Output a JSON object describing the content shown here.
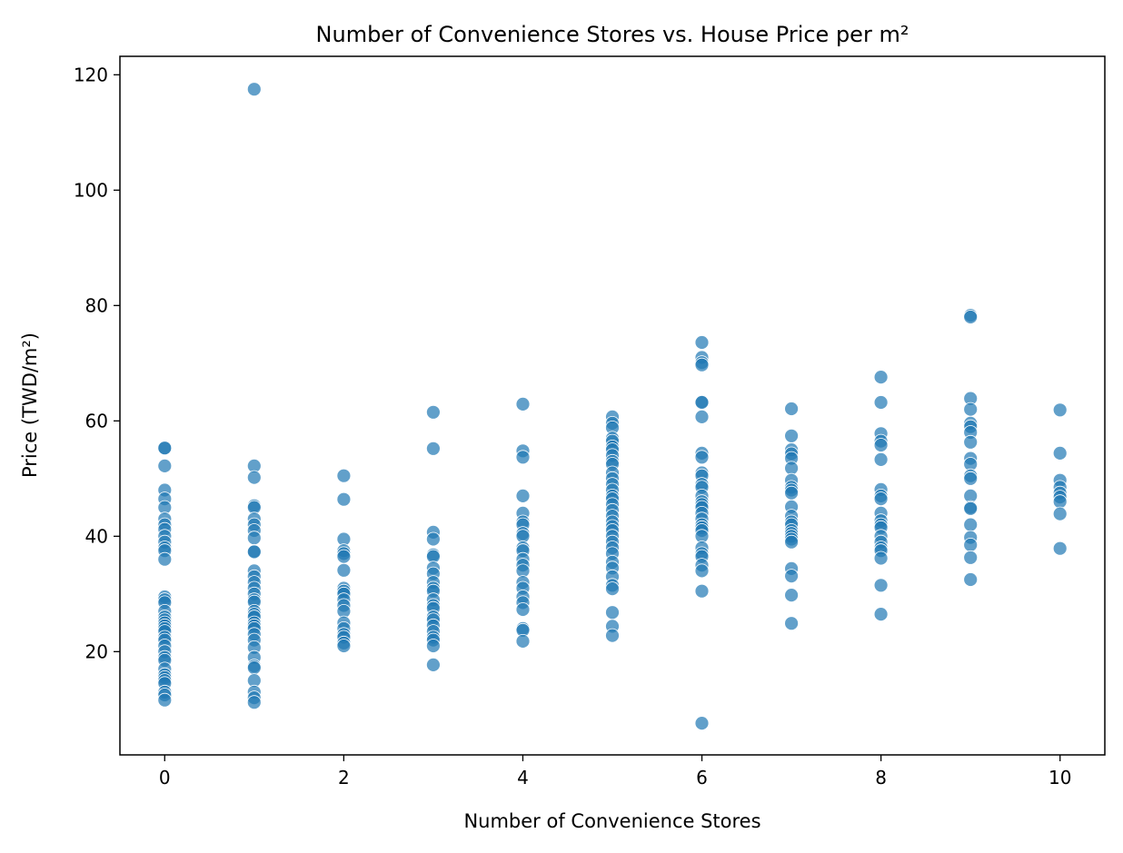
{
  "chart_data": {
    "type": "scatter",
    "title": "Number of Convenience Stores vs. House Price per m²",
    "xlabel": "Number of Convenience Stores",
    "ylabel": "Price (TWD/m²)",
    "xlim": [
      -0.5,
      10.5
    ],
    "ylim": [
      2.1,
      123.2
    ],
    "xticks": [
      0,
      2,
      4,
      6,
      8,
      10
    ],
    "yticks": [
      20,
      40,
      60,
      80,
      100,
      120
    ],
    "xtick_labels": [
      "0",
      "2",
      "4",
      "6",
      "8",
      "10"
    ],
    "ytick_labels": [
      "20",
      "40",
      "60",
      "80",
      "100",
      "120"
    ],
    "grid": false,
    "legend": false,
    "marker_color": "#1f77b4",
    "marker_alpha": 0.7,
    "points": [
      {
        "x": 0,
        "y": [
          55.3,
          55.3,
          52.2,
          48.0,
          46.5,
          45.0,
          43.0,
          42.0,
          41.2,
          40.0,
          39.0,
          38.0,
          37.5,
          36.0,
          29.5,
          29.0,
          28.5,
          27.0,
          26.0,
          25.5,
          25.0,
          24.5,
          24.0,
          23.5,
          22.5,
          22.0,
          21.0,
          20.0,
          19.0,
          18.5,
          17.0,
          16.0,
          15.5,
          15.0,
          14.5,
          13.0,
          12.5,
          11.6
        ]
      },
      {
        "x": 1,
        "y": [
          117.5,
          52.2,
          50.2,
          45.3,
          45.0,
          43.0,
          42.0,
          41.0,
          39.7,
          37.4,
          37.3,
          34.0,
          33.0,
          32.0,
          31.0,
          30.0,
          29.0,
          28.6,
          27.0,
          26.5,
          26.0,
          25.0,
          24.5,
          24.0,
          23.0,
          22.0,
          20.7,
          19.0,
          17.5,
          17.2,
          15.0,
          13.0,
          12.0,
          11.2
        ]
      },
      {
        "x": 2,
        "y": [
          50.5,
          46.4,
          39.5,
          37.5,
          37.0,
          36.5,
          34.1,
          31.0,
          30.5,
          30.0,
          29.0,
          28.0,
          27.0,
          25.0,
          24.0,
          23.0,
          22.5,
          21.5,
          21.0
        ]
      },
      {
        "x": 3,
        "y": [
          61.5,
          55.2,
          40.7,
          39.5,
          36.8,
          36.5,
          34.5,
          33.5,
          32.0,
          31.0,
          30.5,
          29.0,
          28.0,
          27.5,
          26.0,
          25.5,
          24.5,
          23.5,
          22.5,
          22.0,
          21.0,
          17.7
        ]
      },
      {
        "x": 4,
        "y": [
          62.9,
          54.8,
          53.7,
          47.0,
          44.0,
          42.5,
          42.0,
          40.5,
          40.0,
          38.0,
          37.5,
          36.0,
          35.0,
          34.0,
          32.0,
          31.0,
          29.5,
          28.5,
          27.3,
          24.0,
          23.7,
          21.8
        ]
      },
      {
        "x": 5,
        "y": [
          60.7,
          59.6,
          58.8,
          57.0,
          56.5,
          55.5,
          55.0,
          54.0,
          53.0,
          52.5,
          51.0,
          50.0,
          49.0,
          48.0,
          47.0,
          46.5,
          45.5,
          44.5,
          43.5,
          42.5,
          41.7,
          41.0,
          40.0,
          39.0,
          38.0,
          37.0,
          35.5,
          34.5,
          33.0,
          31.5,
          30.9,
          26.8,
          24.4,
          22.8
        ]
      },
      {
        "x": 6,
        "y": [
          73.6,
          71.0,
          70.1,
          69.7,
          63.3,
          63.2,
          60.7,
          54.4,
          53.7,
          51.0,
          50.5,
          49.0,
          48.5,
          47.0,
          46.0,
          45.5,
          45.0,
          44.0,
          43.0,
          42.0,
          41.5,
          41.0,
          40.0,
          38.0,
          37.0,
          36.5,
          35.0,
          34.0,
          30.5,
          7.6
        ]
      },
      {
        "x": 7,
        "y": [
          62.1,
          57.4,
          55.0,
          54.3,
          53.5,
          51.8,
          49.7,
          48.5,
          48.0,
          47.5,
          45.1,
          43.5,
          42.5,
          42.0,
          41.0,
          40.5,
          40.0,
          39.5,
          39.0,
          34.4,
          33.1,
          29.8,
          24.9
        ]
      },
      {
        "x": 8,
        "y": [
          67.6,
          63.2,
          57.8,
          56.5,
          55.8,
          53.3,
          48.1,
          47.0,
          46.5,
          44.0,
          42.7,
          42.0,
          41.5,
          40.0,
          39.0,
          38.0,
          37.5,
          36.2,
          31.5,
          26.5
        ]
      },
      {
        "x": 9,
        "y": [
          78.3,
          78.0,
          63.9,
          62.0,
          59.6,
          59.0,
          58.0,
          56.3,
          53.5,
          52.5,
          50.5,
          50.0,
          47.0,
          45.0,
          44.8,
          42.0,
          39.8,
          38.5,
          36.3,
          32.5
        ]
      },
      {
        "x": 10,
        "y": [
          61.9,
          54.4,
          49.7,
          48.5,
          47.5,
          46.8,
          46.0,
          43.9,
          37.9
        ]
      }
    ]
  }
}
